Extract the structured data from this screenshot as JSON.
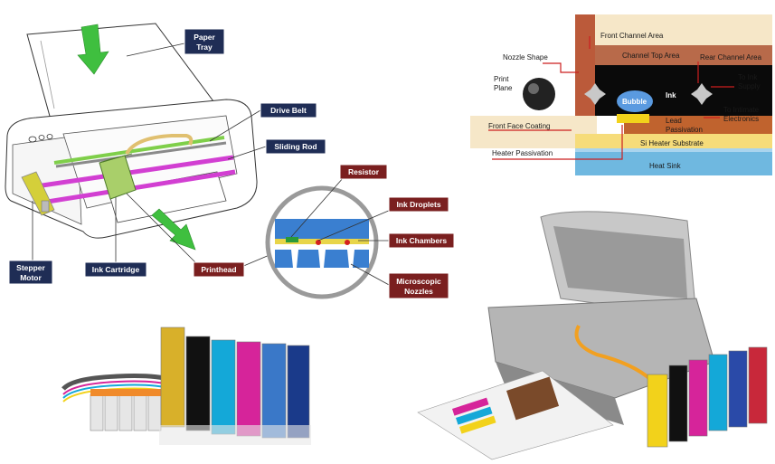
{
  "printer_diagram": {
    "labels": {
      "paper_tray_1": "Paper",
      "paper_tray_2": "Tray",
      "drive_belt": "Drive Belt",
      "sliding_rod": "Sliding Rod",
      "stepper_motor_1": "Stepper",
      "stepper_motor_2": "Motor",
      "ink_cartridge": "Ink Cartridge",
      "printhead": "Printhead",
      "resistor": "Resistor",
      "ink_droplets": "Ink Droplets",
      "ink_chambers": "Ink Chambers",
      "microscopic_nozzles_1": "Microscopic",
      "microscopic_nozzles_2": "Nozzles"
    }
  },
  "nozzle_diagram": {
    "labels": {
      "front_channel_area": "Front Channel Area",
      "channel_top_area": "Channel Top Area",
      "rear_channel_area": "Rear Channel Area",
      "nozzle_shape": "Nozzle Shape",
      "print_plane_1": "Print",
      "print_plane_2": "Plane",
      "bubble": "Bubble",
      "ink": "Ink",
      "to_ink_supply_1": "To Ink",
      "to_ink_supply_2": "Supply",
      "front_face_coating": "Front Face Coating",
      "lead_passivation_1": "Lead",
      "lead_passivation_2": "Passivation",
      "to_intimate_electronics_1": "To Intimate",
      "to_intimate_electronics_2": "Electronics",
      "si_heater_substrate": "Si Heater Substrate",
      "heater_passivation": "Heater Passivation",
      "heat_sink": "Heat Sink"
    }
  },
  "colors": {
    "label_navy": "#1f2d55",
    "label_red": "#7a1f1f",
    "arrow_green": "#3fbf3f",
    "cartridge_green": "#a9cf6a",
    "rod_magenta": "#d23fd2",
    "ink_black": "#111111",
    "ink_cyan": "#14a8d8",
    "ink_magenta": "#d6249a",
    "ink_yellow": "#f2d21b"
  }
}
